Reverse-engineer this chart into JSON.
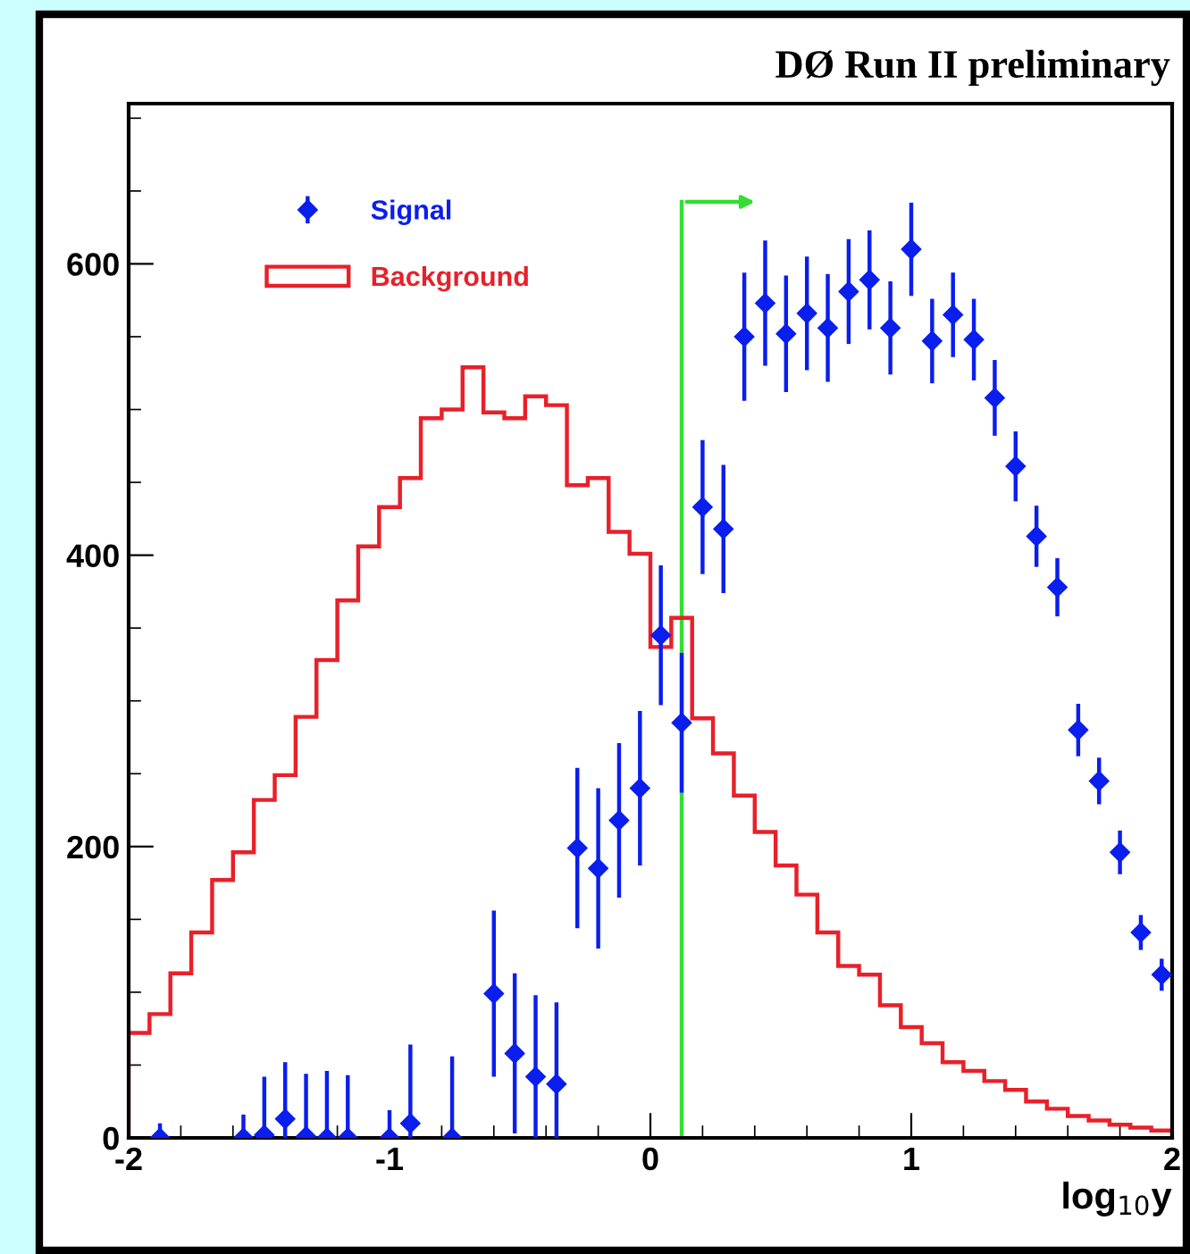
{
  "chart_data": {
    "type": "histogram",
    "title": "DØ Run II preliminary",
    "xlabel": "log$_{10}$y",
    "xlim": [
      -2,
      2
    ],
    "xticks": [
      -2,
      -1,
      0,
      1,
      2
    ],
    "ylim": [
      0,
      710
    ],
    "yticks": [
      0,
      200,
      400,
      600
    ],
    "grid": false,
    "legend": "top left",
    "marker": "diamond",
    "bins": [
      -2,
      -1.92,
      -1.84,
      -1.76,
      -1.68,
      -1.6,
      -1.52,
      -1.44,
      -1.36,
      -1.28,
      -1.2,
      -1.12,
      -1.04,
      -0.96,
      -0.88,
      -0.8,
      -0.72,
      -0.64,
      -0.56,
      -0.48,
      -0.4,
      -0.32,
      -0.24,
      -0.16,
      -0.08,
      0,
      0.08,
      0.16,
      0.24,
      0.32,
      0.4,
      0.48,
      0.56,
      0.64,
      0.72,
      0.8,
      0.88,
      0.96,
      1.04,
      1.12,
      1.2,
      1.28,
      1.36,
      1.44,
      1.52,
      1.6,
      1.68,
      1.76,
      1.84,
      1.92,
      2
    ],
    "series": [
      {
        "name": "Signal",
        "type": "scatter",
        "color": "#0a1eee",
        "x": [
          -1.88,
          -1.56,
          -1.48,
          -1.4,
          -1.32,
          -1.24,
          -1.16,
          -1.0,
          -0.92,
          -0.76,
          -0.6,
          -0.52,
          -0.44,
          -0.36,
          -0.28,
          -0.2,
          -0.12,
          -0.04,
          0.04,
          0.12,
          0.2,
          0.28,
          0.36,
          0.44,
          0.52,
          0.6,
          0.68,
          0.76,
          0.84,
          0.92,
          1.0,
          1.08,
          1.16,
          1.24,
          1.32,
          1.4,
          1.48,
          1.56,
          1.64,
          1.72,
          1.8,
          1.88,
          1.96
        ],
        "values": [
          0,
          0,
          2,
          13,
          1,
          0,
          0,
          0,
          10,
          0,
          99,
          58,
          42,
          37,
          199,
          185,
          218,
          240,
          345,
          285,
          433,
          418,
          550,
          573,
          552,
          566,
          556,
          581,
          589,
          556,
          610,
          547,
          565,
          548,
          508,
          461,
          413,
          378,
          280,
          245,
          196,
          141,
          112
        ],
        "errors": [
          10,
          16,
          40,
          39,
          43,
          46,
          43,
          19,
          54,
          56,
          57,
          55,
          56,
          56,
          55,
          55,
          53,
          53,
          48,
          48,
          46,
          44,
          44,
          43,
          40,
          39,
          37,
          36,
          34,
          32,
          32,
          29,
          29,
          28,
          26,
          24,
          21,
          20,
          18,
          16,
          15,
          12,
          11
        ]
      },
      {
        "name": "Background",
        "color": "#e8202a",
        "values": [
          72,
          85,
          113,
          141,
          177,
          196,
          232,
          249,
          289,
          328,
          369,
          406,
          433,
          453,
          494,
          500,
          529,
          498,
          494,
          509,
          503,
          448,
          453,
          416,
          401,
          337,
          357,
          288,
          264,
          235,
          210,
          187,
          167,
          141,
          118,
          112,
          91,
          76,
          65,
          52,
          46,
          39,
          33,
          25,
          20,
          15,
          12,
          9,
          7,
          5
        ]
      }
    ],
    "ref_lines": [
      {
        "axis": "x",
        "value": 0.12,
        "color": "#33dd33"
      }
    ]
  }
}
